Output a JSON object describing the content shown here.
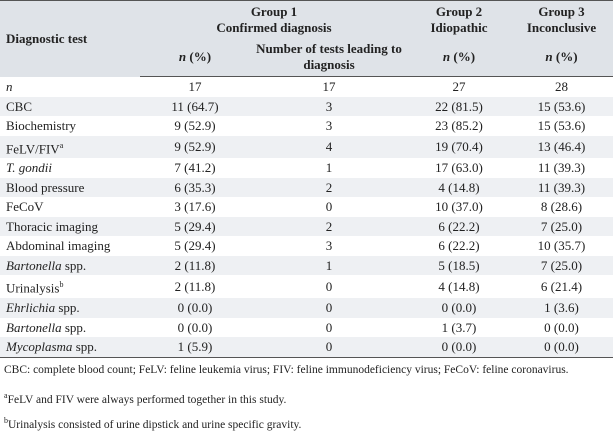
{
  "table": {
    "header": {
      "row_label": "Diagnostic test",
      "groups": [
        {
          "name": "Group 1",
          "subtitle": "Confirmed diagnosis"
        },
        {
          "name": "Group 2",
          "subtitle": "Idiopathic"
        },
        {
          "name": "Group 3",
          "subtitle": "Inconclusive"
        }
      ],
      "columns": [
        [
          {
            "text": "n",
            "style": "italic"
          },
          {
            "text": " (%)"
          }
        ],
        "Number of tests leading to diagnosis",
        [
          {
            "text": "n",
            "style": "italic"
          },
          {
            "text": " (%)"
          }
        ],
        [
          {
            "text": "n",
            "style": "italic"
          },
          {
            "text": " (%)"
          }
        ]
      ]
    },
    "rows": [
      {
        "label": [
          {
            "text": "n",
            "style": "italic"
          }
        ],
        "cells": [
          "17",
          "17",
          "27",
          "28"
        ]
      },
      {
        "label": [
          {
            "text": "CBC"
          }
        ],
        "cells": [
          "11 (64.7)",
          "3",
          "22 (81.5)",
          "15 (53.6)"
        ]
      },
      {
        "label": [
          {
            "text": "Biochemistry"
          }
        ],
        "cells": [
          "9 (52.9)",
          "3",
          "23 (85.2)",
          "15 (53.6)"
        ]
      },
      {
        "label": [
          {
            "text": "FeLV/FIV"
          },
          {
            "text": "a",
            "style": "sup"
          }
        ],
        "cells": [
          "9 (52.9)",
          "4",
          "19 (70.4)",
          "13 (46.4)"
        ]
      },
      {
        "label": [
          {
            "text": "T. gondii",
            "style": "italic"
          }
        ],
        "cells": [
          "7 (41.2)",
          "1",
          "17 (63.0)",
          "11 (39.3)"
        ]
      },
      {
        "label": [
          {
            "text": "Blood pressure"
          }
        ],
        "cells": [
          "6 (35.3)",
          "2",
          "4 (14.8)",
          "11 (39.3)"
        ]
      },
      {
        "label": [
          {
            "text": "FeCoV"
          }
        ],
        "cells": [
          "3 (17.6)",
          "0",
          "10 (37.0)",
          "8 (28.6)"
        ]
      },
      {
        "label": [
          {
            "text": "Thoracic imaging"
          }
        ],
        "cells": [
          "5 (29.4)",
          "2",
          "6 (22.2)",
          "7 (25.0)"
        ]
      },
      {
        "label": [
          {
            "text": "Abdominal imaging"
          }
        ],
        "cells": [
          "5 (29.4)",
          "3",
          "6 (22.2)",
          "10 (35.7)"
        ]
      },
      {
        "label": [
          {
            "text": "Bartonella",
            "style": "italic"
          },
          {
            "text": " spp."
          }
        ],
        "cells": [
          "2 (11.8)",
          "1",
          "5 (18.5)",
          "7 (25.0)"
        ]
      },
      {
        "label": [
          {
            "text": "Urinalysis"
          },
          {
            "text": "b",
            "style": "sup"
          }
        ],
        "cells": [
          "2 (11.8)",
          "0",
          "4 (14.8)",
          "6 (21.4)"
        ]
      },
      {
        "label": [
          {
            "text": "Ehrlichia",
            "style": "italic"
          },
          {
            "text": " spp."
          }
        ],
        "cells": [
          "0 (0.0)",
          "0",
          "0 (0.0)",
          "1 (3.6)"
        ]
      },
      {
        "label": [
          {
            "text": "Bartonella",
            "style": "italic"
          },
          {
            "text": " spp."
          }
        ],
        "cells": [
          "0 (0.0)",
          "0",
          "1 (3.7)",
          "0 (0.0)"
        ]
      },
      {
        "label": [
          {
            "text": "Mycoplasma",
            "style": "italic"
          },
          {
            "text": " spp."
          }
        ],
        "cells": [
          "1 (5.9)",
          "0",
          "0 (0.0)",
          "0 (0.0)"
        ]
      }
    ]
  },
  "footnotes": [
    [
      {
        "text": "CBC: complete blood count; FeLV: feline leukemia virus; FIV: feline immunodeficiency virus; FeCoV: feline coronavirus."
      }
    ],
    [
      {
        "text": "a",
        "style": "sup"
      },
      {
        "text": "FeLV and FIV were always performed together in this study."
      }
    ],
    [
      {
        "text": "b",
        "style": "sup"
      },
      {
        "text": "Urinalysis consisted of urine dipstick and urine specific gravity."
      }
    ]
  ]
}
